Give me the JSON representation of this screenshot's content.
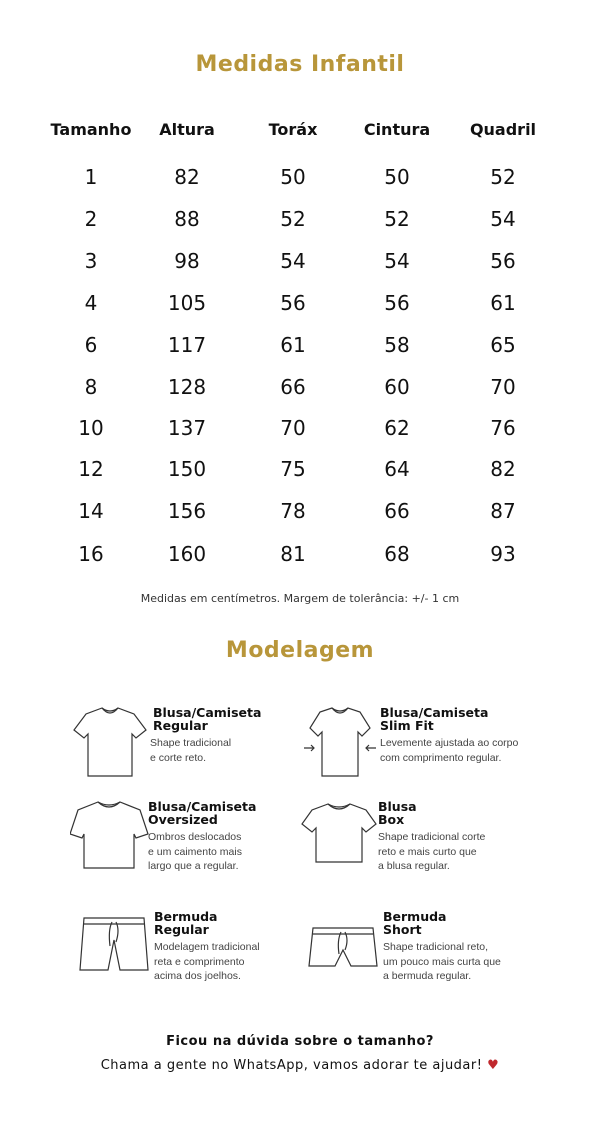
{
  "title": "Medidas Infantil",
  "table": {
    "headers": [
      "Tamanho",
      "Altura",
      "Toráx",
      "Cintura",
      "Quadril"
    ],
    "rows": [
      [
        "1",
        "82",
        "50",
        "50",
        "52"
      ],
      [
        "2",
        "88",
        "52",
        "52",
        "54"
      ],
      [
        "3",
        "98",
        "54",
        "54",
        "56"
      ],
      [
        "4",
        "105",
        "56",
        "56",
        "61"
      ],
      [
        "6",
        "117",
        "61",
        "58",
        "65"
      ],
      [
        "8",
        "128",
        "66",
        "60",
        "70"
      ],
      [
        "10",
        "137",
        "70",
        "62",
        "76"
      ],
      [
        "12",
        "150",
        "75",
        "64",
        "82"
      ],
      [
        "14",
        "156",
        "78",
        "66",
        "87"
      ],
      [
        "16",
        "160",
        "81",
        "68",
        "93"
      ]
    ]
  },
  "note": "Medidas em centímetros. Margem de tolerância: +/- 1 cm",
  "modelagem_title": "Modelagem",
  "items": [
    {
      "icon": "tshirt-regular-icon",
      "title1": "Blusa/Camiseta",
      "title2": "Regular",
      "desc": [
        "Shape tradicional",
        "e corte reto."
      ]
    },
    {
      "icon": "tshirt-slim-icon",
      "title1": "Blusa/Camiseta",
      "title2": "Slim Fit",
      "desc": [
        "Levemente ajustada ao corpo",
        "com comprimento regular."
      ]
    },
    {
      "icon": "tshirt-oversized-icon",
      "title1": "Blusa/Camiseta",
      "title2": "Oversized",
      "desc": [
        "Ombros deslocados",
        "e um caimento mais",
        "largo que a regular."
      ]
    },
    {
      "icon": "tshirt-box-icon",
      "title1": "Blusa",
      "title2": "Box",
      "desc": [
        "Shape tradicional corte",
        "reto e mais curto que",
        "a blusa regular."
      ]
    },
    {
      "icon": "shorts-regular-icon",
      "title1": "Bermuda",
      "title2": "Regular",
      "desc": [
        "Modelagem tradicional",
        "reta e comprimento",
        "acima dos joelhos."
      ]
    },
    {
      "icon": "shorts-short-icon",
      "title1": "Bermuda",
      "title2": "Short",
      "desc": [
        "Shape tradicional reto,",
        "um pouco mais curta que",
        "a bermuda regular."
      ]
    }
  ],
  "footer": {
    "line1": "Ficou na dúvida sobre o tamanho?",
    "line2": "Chama a gente no WhatsApp, vamos adorar te ajudar!",
    "heart": "♥"
  },
  "colors": {
    "accent": "#b8963a",
    "heart": "#c0282d"
  }
}
